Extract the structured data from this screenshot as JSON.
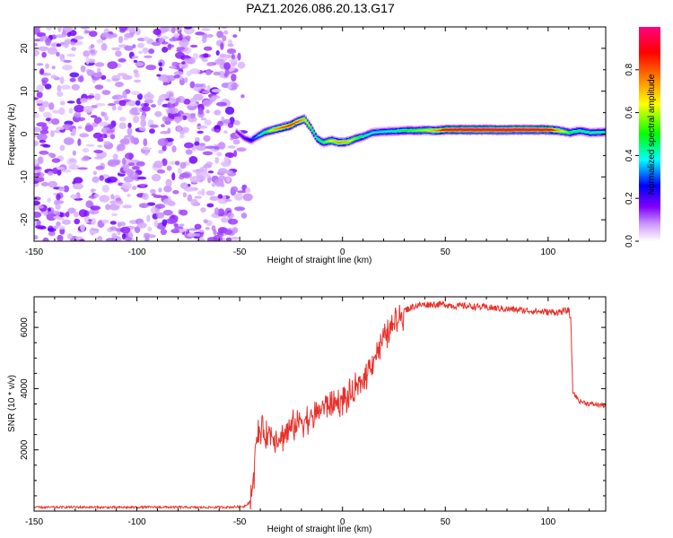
{
  "title": "PAZ1.2026.086.20.13.G17",
  "chart_data": [
    {
      "type": "heatmap",
      "xlabel": "Height of straight line (km)",
      "ylabel": "Frequency (Hz)",
      "xlim": [
        -150,
        128
      ],
      "ylim": [
        -25,
        25
      ],
      "xticks": [
        -150,
        -100,
        -50,
        0,
        50,
        100
      ],
      "xtick_labels": [
        "-150",
        "-100",
        "-50",
        "0",
        "50",
        "100"
      ],
      "yticks": [
        -20,
        -10,
        0,
        10,
        20
      ],
      "ytick_labels": [
        "-20",
        "-10",
        "0",
        "10",
        "20"
      ],
      "colorbar": {
        "label": "Normalized spectral amplitude",
        "range": [
          0,
          1
        ],
        "ticks": [
          0.0,
          0.2,
          0.4,
          0.6,
          0.8
        ],
        "tick_labels": [
          "0.0",
          "0.2",
          "0.4",
          "0.6",
          "0.8"
        ],
        "colors": [
          "#ffffff",
          "#cc99ff",
          "#7f00ff",
          "#0000ff",
          "#00ffff",
          "#00ff00",
          "#ffff00",
          "#ff8000",
          "#ff0000",
          "#ff0080"
        ]
      },
      "noise_region_x": [
        -150,
        -52
      ],
      "signal_track": {
        "x": [
          -52,
          -48,
          -45,
          -42,
          -38,
          -34,
          -30,
          -26,
          -22,
          -19,
          -16,
          -13,
          -10,
          -6,
          -2,
          2,
          6,
          10,
          14,
          18,
          22,
          26,
          30,
          35,
          40,
          45,
          50,
          60,
          70,
          80,
          90,
          100,
          105,
          110,
          115,
          120,
          128
        ],
        "y": [
          0.5,
          -1.0,
          -1.5,
          -0.5,
          0.5,
          1.0,
          1.5,
          2.0,
          3.0,
          3.5,
          1.5,
          -1.0,
          -2.0,
          -1.5,
          -2.0,
          -1.8,
          -1.0,
          -0.5,
          0.3,
          0.5,
          0.6,
          0.7,
          0.8,
          0.8,
          0.9,
          0.8,
          1.0,
          1.0,
          1.0,
          1.0,
          1.0,
          1.0,
          0.8,
          0.3,
          0.8,
          0.3,
          0.5
        ],
        "amplitude": [
          0.15,
          0.2,
          0.25,
          0.35,
          0.5,
          0.7,
          0.8,
          0.85,
          0.8,
          0.7,
          0.55,
          0.45,
          0.5,
          0.65,
          0.75,
          0.7,
          0.55,
          0.45,
          0.4,
          0.4,
          0.42,
          0.45,
          0.5,
          0.55,
          0.62,
          0.75,
          0.95,
          1.0,
          1.0,
          1.0,
          1.0,
          0.95,
          0.7,
          0.5,
          0.45,
          0.45,
          0.45
        ]
      }
    },
    {
      "type": "line",
      "xlabel": "Height of straight line (km)",
      "ylabel": "SNR (10 * v/v)",
      "xlim": [
        -150,
        128
      ],
      "ylim": [
        0,
        7000
      ],
      "xticks": [
        -150,
        -100,
        -50,
        0,
        50,
        100
      ],
      "xtick_labels": [
        "-150",
        "-100",
        "-50",
        "0",
        "50",
        "100"
      ],
      "yticks": [
        2000,
        4000,
        6000
      ],
      "ytick_labels": [
        "2000",
        "4000",
        "6000"
      ],
      "series": [
        {
          "name": "SNR",
          "color": "#e8302a",
          "x": [
            -150,
            -130,
            -110,
            -90,
            -70,
            -55,
            -48,
            -45,
            -43,
            -42,
            -40,
            -35,
            -30,
            -25,
            -20,
            -15,
            -10,
            -5,
            0,
            5,
            10,
            15,
            20,
            25,
            30,
            35,
            40,
            45,
            50,
            55,
            60,
            70,
            80,
            90,
            100,
            105,
            110,
            111,
            112,
            115,
            120,
            128
          ],
          "values": [
            120,
            130,
            120,
            130,
            120,
            130,
            150,
            300,
            1200,
            2300,
            2600,
            2500,
            2400,
            2700,
            3000,
            3000,
            3400,
            3500,
            3600,
            3800,
            4300,
            5000,
            5600,
            6100,
            6550,
            6700,
            6750,
            6750,
            6750,
            6700,
            6700,
            6650,
            6600,
            6550,
            6500,
            6500,
            6550,
            6300,
            3900,
            3600,
            3500,
            3450
          ]
        }
      ]
    }
  ]
}
